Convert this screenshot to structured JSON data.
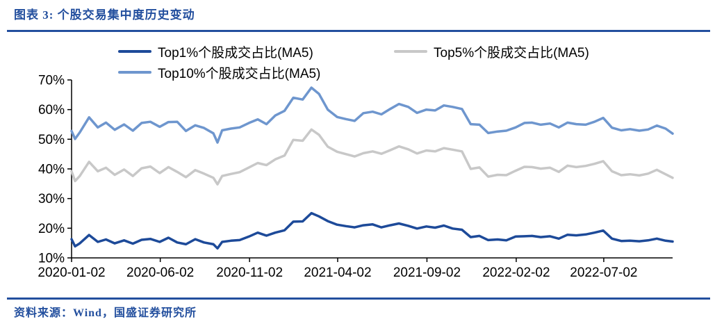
{
  "header": {
    "title": "图表 3:  个股交易集中度历史变动"
  },
  "footer": {
    "source": "资料来源：Wind，国盛证券研究所"
  },
  "accent_color": "#234F9E",
  "chart_data": {
    "type": "line",
    "title": "个股交易集中度历史变动",
    "legend_position": "top",
    "grid": false,
    "ylim": [
      10,
      70
    ],
    "ytick_step": 10,
    "ytick_suffix": "%",
    "xticks": [
      "2020-01-02",
      "2020-06-02",
      "2020-11-02",
      "2021-04-02",
      "2021-09-02",
      "2022-02-02",
      "2022-07-02"
    ],
    "x_domain": [
      "2020-01-02",
      "2022-10-28"
    ],
    "axis_color": "#000000",
    "series": [
      {
        "name": "Top1%个股成交占比(MA5)",
        "color": "#1D4A99",
        "points": [
          [
            "2020-01-02",
            16.3
          ],
          [
            "2020-01-08",
            13.9
          ],
          [
            "2020-01-16",
            14.9
          ],
          [
            "2020-02-01",
            17.7
          ],
          [
            "2020-02-16",
            15.4
          ],
          [
            "2020-03-01",
            16.2
          ],
          [
            "2020-03-16",
            14.9
          ],
          [
            "2020-04-01",
            15.9
          ],
          [
            "2020-04-16",
            14.8
          ],
          [
            "2020-05-01",
            16.1
          ],
          [
            "2020-05-16",
            16.4
          ],
          [
            "2020-06-01",
            15.4
          ],
          [
            "2020-06-16",
            16.8
          ],
          [
            "2020-07-01",
            15.2
          ],
          [
            "2020-07-16",
            14.6
          ],
          [
            "2020-08-01",
            16.3
          ],
          [
            "2020-08-16",
            15.2
          ],
          [
            "2020-09-01",
            14.6
          ],
          [
            "2020-09-08",
            13.2
          ],
          [
            "2020-09-16",
            15.4
          ],
          [
            "2020-10-01",
            15.8
          ],
          [
            "2020-10-16",
            16.0
          ],
          [
            "2020-11-01",
            17.2
          ],
          [
            "2020-11-16",
            18.5
          ],
          [
            "2020-12-01",
            17.5
          ],
          [
            "2020-12-16",
            18.5
          ],
          [
            "2021-01-01",
            19.3
          ],
          [
            "2021-01-16",
            22.2
          ],
          [
            "2021-02-01",
            22.3
          ],
          [
            "2021-02-16",
            25.1
          ],
          [
            "2021-03-01",
            24.0
          ],
          [
            "2021-03-16",
            22.4
          ],
          [
            "2021-04-01",
            21.2
          ],
          [
            "2021-04-16",
            20.7
          ],
          [
            "2021-05-01",
            20.3
          ],
          [
            "2021-05-16",
            21.0
          ],
          [
            "2021-06-01",
            21.3
          ],
          [
            "2021-06-16",
            20.3
          ],
          [
            "2021-07-01",
            21.0
          ],
          [
            "2021-07-16",
            21.6
          ],
          [
            "2021-08-01",
            20.8
          ],
          [
            "2021-08-16",
            19.9
          ],
          [
            "2021-09-01",
            20.6
          ],
          [
            "2021-09-16",
            20.2
          ],
          [
            "2021-10-01",
            20.9
          ],
          [
            "2021-10-16",
            19.9
          ],
          [
            "2021-11-01",
            19.5
          ],
          [
            "2021-11-16",
            17.0
          ],
          [
            "2021-12-01",
            17.4
          ],
          [
            "2021-12-16",
            16.0
          ],
          [
            "2022-01-01",
            16.2
          ],
          [
            "2022-01-16",
            15.9
          ],
          [
            "2022-02-01",
            17.2
          ],
          [
            "2022-02-16",
            17.3
          ],
          [
            "2022-03-01",
            17.4
          ],
          [
            "2022-03-16",
            17.0
          ],
          [
            "2022-04-01",
            17.3
          ],
          [
            "2022-04-16",
            16.5
          ],
          [
            "2022-05-01",
            17.8
          ],
          [
            "2022-05-16",
            17.6
          ],
          [
            "2022-06-01",
            17.9
          ],
          [
            "2022-06-16",
            18.5
          ],
          [
            "2022-07-01",
            19.2
          ],
          [
            "2022-07-16",
            16.5
          ],
          [
            "2022-08-01",
            15.7
          ],
          [
            "2022-08-16",
            15.8
          ],
          [
            "2022-09-01",
            15.6
          ],
          [
            "2022-09-16",
            15.9
          ],
          [
            "2022-10-01",
            16.5
          ],
          [
            "2022-10-16",
            15.8
          ],
          [
            "2022-10-28",
            15.5
          ]
        ]
      },
      {
        "name": "Top5%个股成交占比(MA5)",
        "color": "#C8C8C8",
        "points": [
          [
            "2020-01-02",
            39.2
          ],
          [
            "2020-01-08",
            35.9
          ],
          [
            "2020-01-16",
            37.6
          ],
          [
            "2020-02-01",
            42.4
          ],
          [
            "2020-02-16",
            39.2
          ],
          [
            "2020-03-01",
            40.4
          ],
          [
            "2020-03-16",
            38.0
          ],
          [
            "2020-04-01",
            39.8
          ],
          [
            "2020-04-16",
            37.6
          ],
          [
            "2020-05-01",
            40.2
          ],
          [
            "2020-05-16",
            40.8
          ],
          [
            "2020-06-01",
            38.6
          ],
          [
            "2020-06-16",
            40.6
          ],
          [
            "2020-07-01",
            39.0
          ],
          [
            "2020-07-16",
            37.2
          ],
          [
            "2020-08-01",
            39.6
          ],
          [
            "2020-08-16",
            38.4
          ],
          [
            "2020-09-01",
            37.0
          ],
          [
            "2020-09-08",
            34.8
          ],
          [
            "2020-09-16",
            37.6
          ],
          [
            "2020-10-01",
            38.3
          ],
          [
            "2020-10-16",
            38.9
          ],
          [
            "2020-11-01",
            40.5
          ],
          [
            "2020-11-16",
            42.0
          ],
          [
            "2020-12-01",
            41.3
          ],
          [
            "2020-12-16",
            43.2
          ],
          [
            "2021-01-01",
            44.5
          ],
          [
            "2021-01-16",
            49.8
          ],
          [
            "2021-02-01",
            49.5
          ],
          [
            "2021-02-16",
            53.3
          ],
          [
            "2021-03-01",
            51.5
          ],
          [
            "2021-03-16",
            47.5
          ],
          [
            "2021-04-01",
            45.8
          ],
          [
            "2021-04-16",
            45.0
          ],
          [
            "2021-05-01",
            44.2
          ],
          [
            "2021-05-16",
            45.3
          ],
          [
            "2021-06-01",
            45.9
          ],
          [
            "2021-06-16",
            45.1
          ],
          [
            "2021-07-01",
            46.3
          ],
          [
            "2021-07-16",
            47.6
          ],
          [
            "2021-08-01",
            46.6
          ],
          [
            "2021-08-16",
            45.2
          ],
          [
            "2021-09-01",
            46.2
          ],
          [
            "2021-09-16",
            45.9
          ],
          [
            "2021-10-01",
            47.0
          ],
          [
            "2021-10-16",
            46.5
          ],
          [
            "2021-11-01",
            45.9
          ],
          [
            "2021-11-16",
            40.0
          ],
          [
            "2021-12-01",
            40.5
          ],
          [
            "2021-12-16",
            37.4
          ],
          [
            "2022-01-01",
            38.0
          ],
          [
            "2022-01-16",
            37.9
          ],
          [
            "2022-02-01",
            39.4
          ],
          [
            "2022-02-16",
            40.7
          ],
          [
            "2022-03-01",
            40.6
          ],
          [
            "2022-03-16",
            40.1
          ],
          [
            "2022-04-01",
            40.4
          ],
          [
            "2022-04-16",
            39.0
          ],
          [
            "2022-05-01",
            41.1
          ],
          [
            "2022-05-16",
            40.6
          ],
          [
            "2022-06-01",
            41.0
          ],
          [
            "2022-06-16",
            41.7
          ],
          [
            "2022-07-01",
            42.6
          ],
          [
            "2022-07-16",
            39.2
          ],
          [
            "2022-08-01",
            37.9
          ],
          [
            "2022-08-16",
            38.2
          ],
          [
            "2022-09-01",
            37.8
          ],
          [
            "2022-09-16",
            38.4
          ],
          [
            "2022-10-01",
            39.7
          ],
          [
            "2022-10-16",
            38.2
          ],
          [
            "2022-10-28",
            37.0
          ]
        ]
      },
      {
        "name": "Top10%个股成交占比(MA5)",
        "color": "#6E96CE",
        "points": [
          [
            "2020-01-02",
            52.8
          ],
          [
            "2020-01-08",
            50.1
          ],
          [
            "2020-01-16",
            52.3
          ],
          [
            "2020-02-01",
            57.4
          ],
          [
            "2020-02-16",
            54.0
          ],
          [
            "2020-03-01",
            55.6
          ],
          [
            "2020-03-16",
            53.2
          ],
          [
            "2020-04-01",
            55.0
          ],
          [
            "2020-04-16",
            52.9
          ],
          [
            "2020-05-01",
            55.5
          ],
          [
            "2020-05-16",
            55.9
          ],
          [
            "2020-06-01",
            54.2
          ],
          [
            "2020-06-16",
            55.8
          ],
          [
            "2020-07-01",
            55.9
          ],
          [
            "2020-07-16",
            52.8
          ],
          [
            "2020-08-01",
            54.7
          ],
          [
            "2020-08-16",
            53.8
          ],
          [
            "2020-09-01",
            52.0
          ],
          [
            "2020-09-08",
            48.9
          ],
          [
            "2020-09-16",
            53.0
          ],
          [
            "2020-10-01",
            53.6
          ],
          [
            "2020-10-16",
            54.0
          ],
          [
            "2020-11-01",
            55.5
          ],
          [
            "2020-11-16",
            56.7
          ],
          [
            "2020-12-01",
            55.1
          ],
          [
            "2020-12-16",
            58.0
          ],
          [
            "2021-01-01",
            59.6
          ],
          [
            "2021-01-16",
            64.0
          ],
          [
            "2021-02-01",
            63.4
          ],
          [
            "2021-02-16",
            67.4
          ],
          [
            "2021-03-01",
            65.3
          ],
          [
            "2021-03-16",
            60.0
          ],
          [
            "2021-04-01",
            57.5
          ],
          [
            "2021-04-16",
            56.8
          ],
          [
            "2021-05-01",
            56.2
          ],
          [
            "2021-05-16",
            58.8
          ],
          [
            "2021-06-01",
            59.3
          ],
          [
            "2021-06-16",
            58.4
          ],
          [
            "2021-07-01",
            60.2
          ],
          [
            "2021-07-16",
            61.9
          ],
          [
            "2021-08-01",
            60.9
          ],
          [
            "2021-08-16",
            58.9
          ],
          [
            "2021-09-01",
            60.0
          ],
          [
            "2021-09-16",
            59.7
          ],
          [
            "2021-10-01",
            61.4
          ],
          [
            "2021-10-16",
            60.9
          ],
          [
            "2021-11-01",
            60.2
          ],
          [
            "2021-11-16",
            55.1
          ],
          [
            "2021-12-01",
            54.9
          ],
          [
            "2021-12-16",
            52.1
          ],
          [
            "2022-01-01",
            52.6
          ],
          [
            "2022-01-16",
            52.9
          ],
          [
            "2022-02-01",
            54.0
          ],
          [
            "2022-02-16",
            55.5
          ],
          [
            "2022-03-01",
            55.6
          ],
          [
            "2022-03-16",
            54.9
          ],
          [
            "2022-04-01",
            55.3
          ],
          [
            "2022-04-16",
            54.0
          ],
          [
            "2022-05-01",
            55.6
          ],
          [
            "2022-05-16",
            55.1
          ],
          [
            "2022-06-01",
            54.9
          ],
          [
            "2022-06-16",
            55.9
          ],
          [
            "2022-07-01",
            57.2
          ],
          [
            "2022-07-16",
            53.9
          ],
          [
            "2022-08-01",
            53.0
          ],
          [
            "2022-08-16",
            53.4
          ],
          [
            "2022-09-01",
            52.9
          ],
          [
            "2022-09-16",
            53.3
          ],
          [
            "2022-10-01",
            54.6
          ],
          [
            "2022-10-16",
            53.6
          ],
          [
            "2022-10-28",
            51.9
          ]
        ]
      }
    ]
  }
}
